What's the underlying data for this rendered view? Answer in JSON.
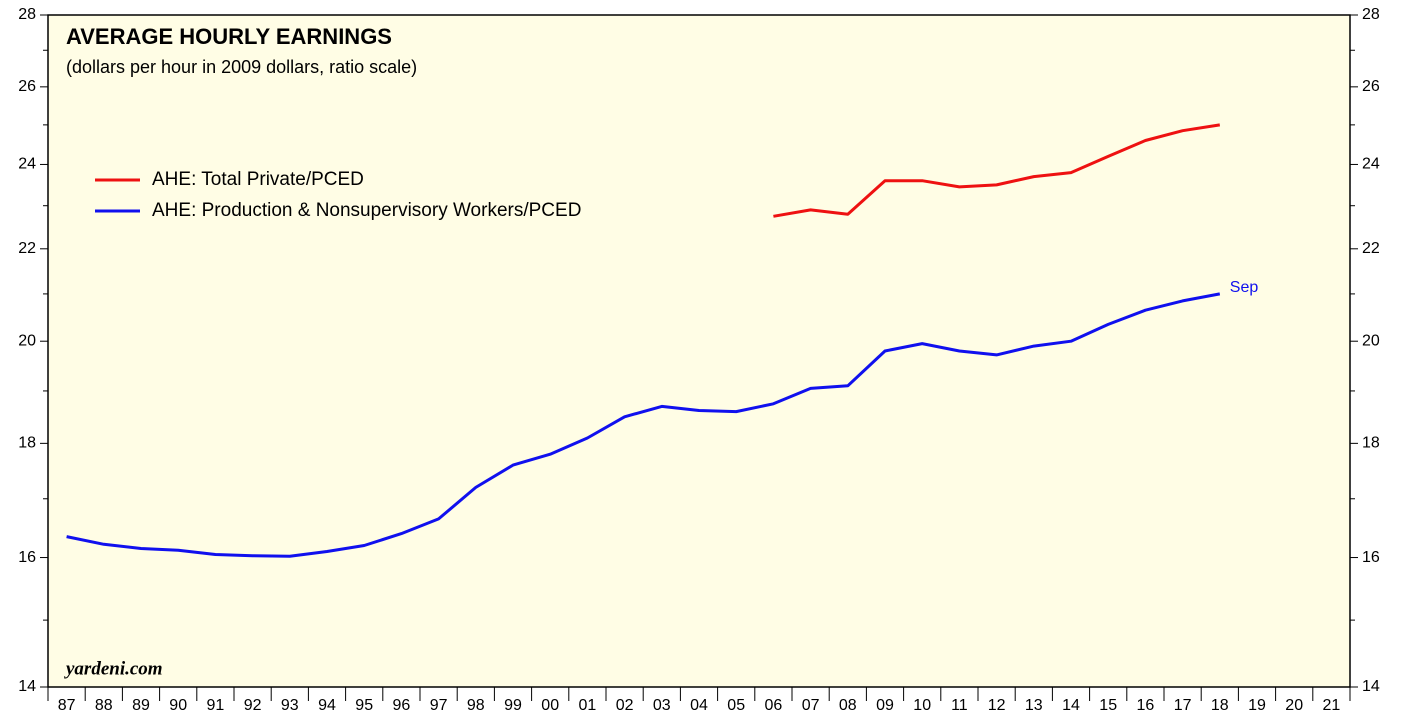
{
  "chart_data": {
    "type": "line",
    "title": "AVERAGE HOURLY EARNINGS",
    "subtitle": "(dollars per hour in 2009 dollars, ratio scale)",
    "source": "yardeni.com",
    "annotation": "Sep",
    "log_scale": true,
    "categories": [
      "87",
      "88",
      "89",
      "90",
      "91",
      "92",
      "93",
      "94",
      "95",
      "96",
      "97",
      "98",
      "99",
      "00",
      "01",
      "02",
      "03",
      "04",
      "05",
      "06",
      "07",
      "08",
      "09",
      "10",
      "11",
      "12",
      "13",
      "14",
      "15",
      "16",
      "17",
      "18",
      "19",
      "20",
      "21"
    ],
    "series": [
      {
        "name": "AHE: Total Private/PCED",
        "color": "#ee1111",
        "values": [
          null,
          null,
          null,
          null,
          null,
          null,
          null,
          null,
          null,
          null,
          null,
          null,
          null,
          null,
          null,
          null,
          null,
          null,
          null,
          22.75,
          22.9,
          22.8,
          23.6,
          23.6,
          23.45,
          23.5,
          23.7,
          23.8,
          24.2,
          24.6,
          24.85,
          25.0,
          null,
          null,
          null
        ]
      },
      {
        "name": "AHE: Production & Nonsupervisory Workers/PCED",
        "color": "#1010ee",
        "values": [
          16.35,
          16.22,
          16.15,
          16.12,
          16.05,
          16.03,
          16.02,
          16.1,
          16.2,
          16.4,
          16.65,
          17.2,
          17.6,
          17.8,
          18.1,
          18.5,
          18.7,
          18.62,
          18.6,
          18.75,
          19.05,
          19.1,
          19.8,
          19.95,
          19.8,
          19.72,
          19.9,
          20.0,
          20.35,
          20.65,
          20.85,
          21.0,
          null,
          null,
          null
        ]
      }
    ],
    "ylim": [
      14,
      28
    ],
    "yticks": [
      14,
      16,
      18,
      20,
      22,
      24,
      26,
      28
    ],
    "yminor_ticks": [
      15,
      17,
      19,
      21,
      23,
      25,
      27
    ],
    "background": "#fffde5"
  }
}
